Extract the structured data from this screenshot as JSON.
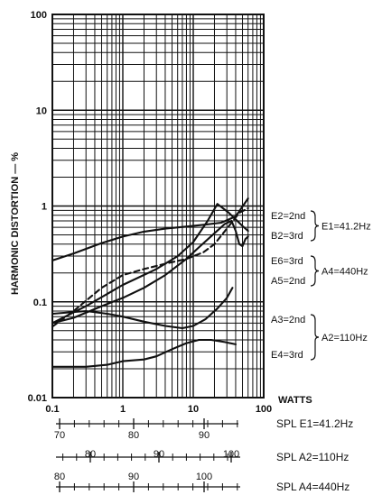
{
  "chart_data": {
    "type": "line",
    "title": "",
    "ylabel": "HARMONIC DISTORTION — %",
    "xlabel": "WATTS",
    "xscale": "log",
    "yscale": "log",
    "xlim": [
      0.1,
      100
    ],
    "ylim": [
      0.01,
      100
    ],
    "xticks": [
      {
        "v": 0.1,
        "label": "0.1"
      },
      {
        "v": 1,
        "label": "1"
      },
      {
        "v": 10,
        "label": "10"
      },
      {
        "v": 100,
        "label": "100"
      }
    ],
    "yticks": [
      {
        "v": 0.01,
        "label": "0.01"
      },
      {
        "v": 0.1,
        "label": "0.1"
      },
      {
        "v": 1,
        "label": "1"
      },
      {
        "v": 10,
        "label": "10"
      },
      {
        "v": 100,
        "label": "100"
      }
    ],
    "grid": true,
    "series": [
      {
        "name": "E2=2nd",
        "style": "solid",
        "points": [
          [
            0.1,
            0.27
          ],
          [
            0.2,
            0.32
          ],
          [
            0.5,
            0.41
          ],
          [
            1,
            0.48
          ],
          [
            2,
            0.54
          ],
          [
            4,
            0.58
          ],
          [
            8,
            0.61
          ],
          [
            15,
            0.64
          ],
          [
            25,
            0.67
          ],
          [
            40,
            0.78
          ],
          [
            60,
            1.2
          ]
        ]
      },
      {
        "name": "B2=3rd",
        "style": "solid",
        "points": [
          [
            0.1,
            0.06
          ],
          [
            0.3,
            0.09
          ],
          [
            1,
            0.15
          ],
          [
            3,
            0.22
          ],
          [
            6,
            0.3
          ],
          [
            10,
            0.42
          ],
          [
            16,
            0.7
          ],
          [
            22,
            1.05
          ],
          [
            32,
            0.85
          ],
          [
            50,
            0.62
          ],
          [
            60,
            0.55
          ]
        ]
      },
      {
        "name": "E6=3rd",
        "style": "solid",
        "points": [
          [
            0.1,
            0.06
          ],
          [
            0.2,
            0.068
          ],
          [
            0.5,
            0.09
          ],
          [
            1,
            0.11
          ],
          [
            2,
            0.14
          ],
          [
            4,
            0.19
          ],
          [
            8,
            0.28
          ],
          [
            12,
            0.37
          ],
          [
            20,
            0.52
          ],
          [
            28,
            0.65
          ],
          [
            35,
            0.7
          ],
          [
            40,
            0.55
          ],
          [
            45,
            0.4
          ],
          [
            50,
            0.38
          ],
          [
            55,
            0.45
          ],
          [
            60,
            0.48
          ]
        ]
      },
      {
        "name": "A5=2nd",
        "style": "dashed",
        "points": [
          [
            0.1,
            0.055
          ],
          [
            0.2,
            0.08
          ],
          [
            0.5,
            0.14
          ],
          [
            1,
            0.19
          ],
          [
            2,
            0.22
          ],
          [
            4,
            0.25
          ],
          [
            8,
            0.28
          ],
          [
            14,
            0.33
          ],
          [
            20,
            0.4
          ],
          [
            30,
            0.58
          ],
          [
            45,
            0.85
          ],
          [
            60,
            0.95
          ]
        ]
      },
      {
        "name": "A3=2nd",
        "style": "solid",
        "points": [
          [
            0.1,
            0.075
          ],
          [
            0.3,
            0.08
          ],
          [
            0.6,
            0.075
          ],
          [
            1,
            0.07
          ],
          [
            2,
            0.062
          ],
          [
            4,
            0.056
          ],
          [
            7,
            0.053
          ],
          [
            10,
            0.056
          ],
          [
            15,
            0.066
          ],
          [
            22,
            0.085
          ],
          [
            30,
            0.11
          ],
          [
            36,
            0.14
          ]
        ]
      },
      {
        "name": "E4=3rd",
        "style": "solid",
        "points": [
          [
            0.1,
            0.021
          ],
          [
            0.3,
            0.021
          ],
          [
            0.6,
            0.022
          ],
          [
            1,
            0.024
          ],
          [
            2,
            0.025
          ],
          [
            3,
            0.027
          ],
          [
            5,
            0.032
          ],
          [
            8,
            0.037
          ],
          [
            12,
            0.04
          ],
          [
            18,
            0.04
          ],
          [
            28,
            0.038
          ],
          [
            40,
            0.036
          ]
        ]
      }
    ],
    "legend_brackets": [
      {
        "members": [
          "E2=2nd",
          "B2=3rd"
        ],
        "label": "E1=41.2Hz"
      },
      {
        "members": [
          "E6=3rd",
          "A5=2nd"
        ],
        "label": "A4=440Hz"
      },
      {
        "members": [
          "A3=2nd",
          "E4=3rd"
        ],
        "label": "A2=110Hz"
      }
    ],
    "spl_scales": [
      {
        "label": "SPL E1=41.2Hz",
        "ticks": [
          {
            "v": 70,
            "label": "70"
          },
          {
            "v": 80,
            "label": "80"
          },
          {
            "v": 90,
            "label": "90"
          }
        ]
      },
      {
        "label": "SPL A2=110Hz",
        "ticks": [
          {
            "v": 80,
            "label": "80"
          },
          {
            "v": 90,
            "label": "90"
          },
          {
            "v": 100,
            "label": "100"
          }
        ]
      },
      {
        "label": "SPL A4=440Hz",
        "ticks": [
          {
            "v": 80,
            "label": "80"
          },
          {
            "v": 90,
            "label": "90"
          },
          {
            "v": 100,
            "label": "100"
          }
        ]
      }
    ]
  }
}
